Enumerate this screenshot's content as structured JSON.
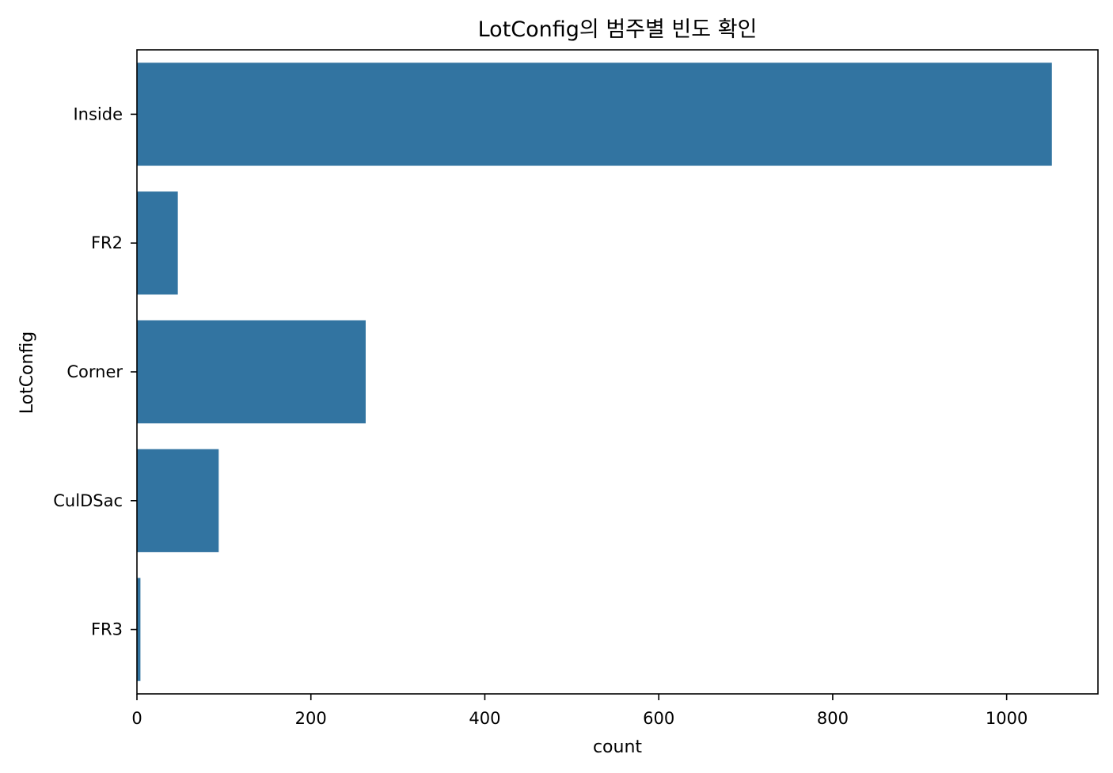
{
  "chart_data": {
    "type": "bar",
    "orientation": "horizontal",
    "title": "LotConfig의 범주별 빈도 확인",
    "xlabel": "count",
    "ylabel": "LotConfig",
    "categories": [
      "Inside",
      "FR2",
      "Corner",
      "CulDSac",
      "FR3"
    ],
    "values": [
      1052,
      47,
      263,
      94,
      4
    ],
    "xlim": [
      0,
      1105
    ],
    "xticks": [
      0,
      200,
      400,
      600,
      800,
      1000
    ],
    "xtick_labels": [
      "0",
      "200",
      "400",
      "600",
      "800",
      "1000"
    ],
    "bar_color": "#3274a1",
    "grid": false,
    "legend": "none"
  }
}
